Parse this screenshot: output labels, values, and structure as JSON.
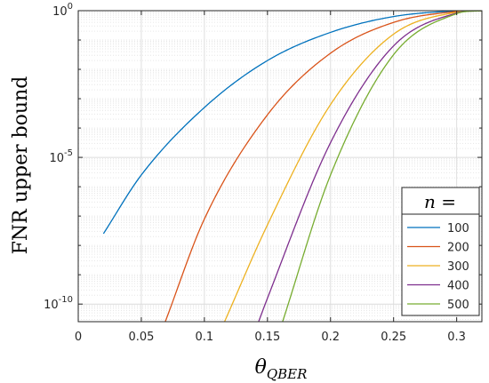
{
  "chart_data": {
    "type": "line",
    "title": "",
    "xlabel": "θ",
    "xlabel_sub": "QBER",
    "ylabel": "FNR upper bound",
    "yscale": "log",
    "xlim": [
      0,
      0.32
    ],
    "ylim_log10": [
      -10.6,
      0
    ],
    "grid": true,
    "x_ticks": [
      "0",
      "0.05",
      "0.1",
      "0.15",
      "0.2",
      "0.25",
      "0.3"
    ],
    "x_tick_values": [
      0,
      0.05,
      0.1,
      0.15,
      0.2,
      0.25,
      0.3
    ],
    "y_ticks": [
      {
        "base": "10",
        "exp": "0",
        "log10": 0
      },
      {
        "base": "10",
        "exp": "-5",
        "log10": -5
      },
      {
        "base": "10",
        "exp": "-10",
        "log10": -10
      }
    ],
    "legend_title": "n =",
    "legend_position": "bottom-right",
    "series": [
      {
        "name": "100",
        "color": "#0072BD",
        "x": [
          0.02,
          0.05,
          0.1,
          0.15,
          0.2,
          0.25,
          0.3,
          0.32
        ],
        "log10_y": [
          -7.6,
          -5.6,
          -3.3,
          -1.7,
          -0.74,
          -0.2,
          -0.01,
          0
        ]
      },
      {
        "name": "200",
        "color": "#D95319",
        "x": [
          0.069,
          0.1,
          0.15,
          0.2,
          0.25,
          0.3,
          0.32
        ],
        "log10_y": [
          -10.6,
          -7.1,
          -3.55,
          -1.45,
          -0.4,
          -0.03,
          0
        ]
      },
      {
        "name": "300",
        "color": "#EDB120",
        "x": [
          0.116,
          0.15,
          0.2,
          0.25,
          0.3,
          0.32
        ],
        "log10_y": [
          -10.6,
          -7.3,
          -3.2,
          -0.8,
          -0.05,
          0
        ]
      },
      {
        "name": "400",
        "color": "#7E2F8E",
        "x": [
          0.143,
          0.15,
          0.2,
          0.25,
          0.3,
          0.32
        ],
        "log10_y": [
          -10.6,
          -9.8,
          -4.5,
          -1.2,
          -0.08,
          0
        ]
      },
      {
        "name": "500",
        "color": "#77AC30",
        "x": [
          0.162,
          0.2,
          0.25,
          0.3,
          0.32
        ],
        "log10_y": [
          -10.6,
          -5.6,
          -1.5,
          -0.1,
          0
        ]
      }
    ]
  }
}
